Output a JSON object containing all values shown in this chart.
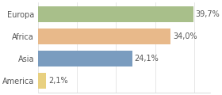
{
  "categories": [
    "America",
    "Asia",
    "Africa",
    "Europa"
  ],
  "values": [
    2.1,
    24.1,
    34.0,
    39.7
  ],
  "labels": [
    "2,1%",
    "24,1%",
    "34,0%",
    "39,7%"
  ],
  "bar_colors": [
    "#e8d080",
    "#7a9cbf",
    "#e8b98a",
    "#a8bf8a"
  ],
  "background_color": "#ffffff",
  "xlim": [
    0,
    44
  ],
  "bar_height": 0.72,
  "label_fontsize": 7.0,
  "tick_fontsize": 7.0,
  "grid_color": "#dddddd",
  "grid_xticks": [
    0,
    10,
    20,
    30,
    40
  ]
}
